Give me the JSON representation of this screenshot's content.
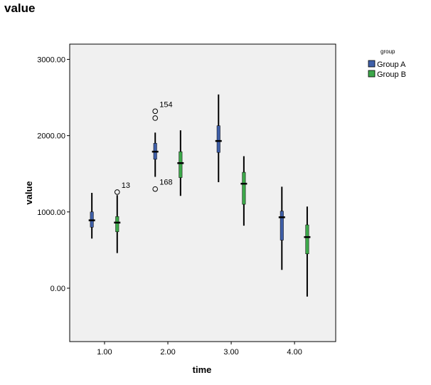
{
  "chart_data": {
    "type": "boxplot",
    "title": "value",
    "xlabel": "time",
    "ylabel": "value",
    "xlim": [
      0.45,
      4.65
    ],
    "ylim": [
      -700,
      3200
    ],
    "y_ticks": [
      0,
      1000,
      2000,
      3000
    ],
    "y_tick_labels": [
      "0.00",
      "1000.00",
      "2000.00",
      "3000.00"
    ],
    "x_ticks": [
      1,
      2,
      3,
      4
    ],
    "x_tick_labels": [
      "1.00",
      "2.00",
      "3.00",
      "4.00"
    ],
    "legend": {
      "title": "group",
      "position": "right"
    },
    "colors": {
      "plot_bg": "#f0f0f0",
      "Group A": "#3f5fa8",
      "Group B": "#3da84a"
    },
    "series": [
      {
        "name": "Group A",
        "boxes": [
          {
            "x": 1,
            "whisker_low": 650,
            "q1": 800,
            "median": 890,
            "q3": 1000,
            "whisker_high": 1250,
            "outliers": []
          },
          {
            "x": 2,
            "whisker_low": 1460,
            "q1": 1690,
            "median": 1790,
            "q3": 1900,
            "whisker_high": 2040,
            "outliers": [
              {
                "value": 2320,
                "label": "154"
              },
              {
                "value": 2230,
                "label": ""
              },
              {
                "value": 1300,
                "label": "168"
              }
            ]
          },
          {
            "x": 3,
            "whisker_low": 1390,
            "q1": 1780,
            "median": 1930,
            "q3": 2130,
            "whisker_high": 2540,
            "outliers": []
          },
          {
            "x": 4,
            "whisker_low": 240,
            "q1": 630,
            "median": 930,
            "q3": 1010,
            "whisker_high": 1330,
            "outliers": []
          }
        ]
      },
      {
        "name": "Group B",
        "boxes": [
          {
            "x": 1,
            "whisker_low": 460,
            "q1": 740,
            "median": 860,
            "q3": 940,
            "whisker_high": 1220,
            "outliers": [
              {
                "value": 1260,
                "label": "13"
              }
            ]
          },
          {
            "x": 2,
            "whisker_low": 1210,
            "q1": 1450,
            "median": 1640,
            "q3": 1790,
            "whisker_high": 2070,
            "outliers": []
          },
          {
            "x": 3,
            "whisker_low": 820,
            "q1": 1100,
            "median": 1370,
            "q3": 1520,
            "whisker_high": 1730,
            "outliers": []
          },
          {
            "x": 4,
            "whisker_low": -110,
            "q1": 450,
            "median": 670,
            "q3": 830,
            "whisker_high": 1070,
            "outliers": []
          }
        ]
      }
    ]
  }
}
